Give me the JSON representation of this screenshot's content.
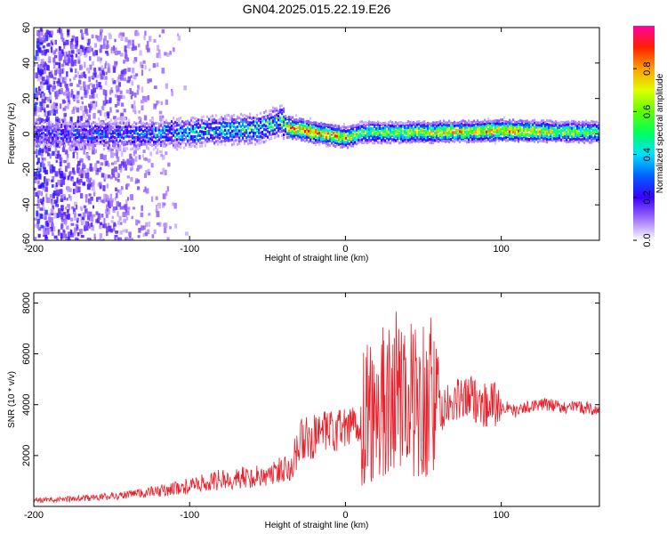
{
  "chart_data": [
    {
      "type": "heatmap",
      "title": "GN04.2025.015.22.19.E26",
      "xlabel": "Height of straight line (km)",
      "ylabel": "Frequency (Hz)",
      "xlim": [
        -200,
        163
      ],
      "ylim": [
        -60,
        60
      ],
      "xticks": [
        -200,
        -100,
        0,
        100
      ],
      "yticks": [
        60,
        40,
        20,
        0,
        -20,
        -40,
        -60
      ],
      "colorbar": {
        "label": "Normalized spectral amplitude",
        "range": [
          0,
          1
        ],
        "ticks": [
          "0.0",
          "0.2",
          "0.4",
          "0.6",
          "0.8"
        ]
      },
      "ridge": [
        {
          "x": -170,
          "center": 0,
          "amp": 0.25
        },
        {
          "x": -120,
          "center": 0,
          "amp": 0.35
        },
        {
          "x": -80,
          "center": 2,
          "amp": 0.4
        },
        {
          "x": -55,
          "center": 3,
          "amp": 0.45
        },
        {
          "x": -42,
          "center": 8,
          "amp": 0.5
        },
        {
          "x": -38,
          "center": 4,
          "amp": 0.85
        },
        {
          "x": -20,
          "center": 1,
          "amp": 0.9
        },
        {
          "x": 0,
          "center": -2,
          "amp": 0.85
        },
        {
          "x": 10,
          "center": 1,
          "amp": 0.6
        },
        {
          "x": 50,
          "center": 1,
          "amp": 0.75
        },
        {
          "x": 100,
          "center": 2,
          "amp": 0.9
        },
        {
          "x": 163,
          "center": 1,
          "amp": 0.6
        }
      ]
    },
    {
      "type": "line",
      "xlabel": "Height of straight line (km)",
      "ylabel": "SNR (10 * v/v)",
      "xlim": [
        -200,
        163
      ],
      "ylim": [
        0,
        8400
      ],
      "xticks": [
        -200,
        -100,
        0,
        100
      ],
      "yticks": [
        2000,
        4000,
        6000,
        8000
      ],
      "color": "#e8202a",
      "series": [
        {
          "x": [
            -200,
            -180,
            -160,
            -140,
            -120,
            -100,
            -80,
            -60,
            -45,
            -35,
            -28,
            -20,
            -10,
            0,
            8,
            15,
            20,
            25,
            30,
            35,
            40,
            45,
            50,
            55,
            60,
            70,
            80,
            90,
            100,
            110,
            120,
            130,
            140,
            150,
            163
          ],
          "values": [
            250,
            280,
            350,
            450,
            600,
            800,
            1050,
            1150,
            1300,
            1700,
            2600,
            2700,
            2900,
            3000,
            3300,
            3500,
            3800,
            4300,
            4200,
            4800,
            4000,
            4500,
            4100,
            4400,
            3700,
            4100,
            4300,
            4000,
            4000,
            3700,
            4000,
            4000,
            3900,
            3900,
            3800
          ]
        }
      ]
    }
  ]
}
